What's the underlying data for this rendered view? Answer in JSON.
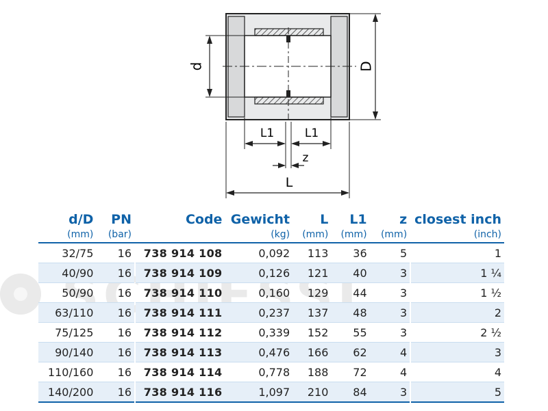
{
  "drawing": {
    "label_d": "d",
    "label_D": "D",
    "label_L1_left": "L1",
    "label_L1_right": "L1",
    "label_z": "z",
    "label_L": "L"
  },
  "watermark": "SCHIESSL",
  "table": {
    "headers": [
      "d/D",
      "PN",
      "Code",
      "Gewicht",
      "L",
      "L1",
      "z",
      "closest inch"
    ],
    "units": [
      "(mm)",
      "(bar)",
      "",
      "(kg)",
      "(mm)",
      "(mm)",
      "(mm)",
      "(inch)"
    ],
    "rows": [
      [
        "32/75",
        "16",
        "738 914 108",
        "0,092",
        "113",
        "36",
        "5",
        "1"
      ],
      [
        "40/90",
        "16",
        "738 914 109",
        "0,126",
        "121",
        "40",
        "3",
        "1 ¼"
      ],
      [
        "50/90",
        "16",
        "738 914 110",
        "0,160",
        "129",
        "44",
        "3",
        "1 ½"
      ],
      [
        "63/110",
        "16",
        "738 914 111",
        "0,237",
        "137",
        "48",
        "3",
        "2"
      ],
      [
        "75/125",
        "16",
        "738 914 112",
        "0,339",
        "152",
        "55",
        "3",
        "2 ½"
      ],
      [
        "90/140",
        "16",
        "738 914 113",
        "0,476",
        "166",
        "62",
        "4",
        "3"
      ],
      [
        "110/160",
        "16",
        "738 914 114",
        "0,778",
        "188",
        "72",
        "4",
        "4"
      ],
      [
        "140/200",
        "16",
        "738 914 116",
        "1,097",
        "210",
        "84",
        "3",
        "5"
      ]
    ]
  }
}
